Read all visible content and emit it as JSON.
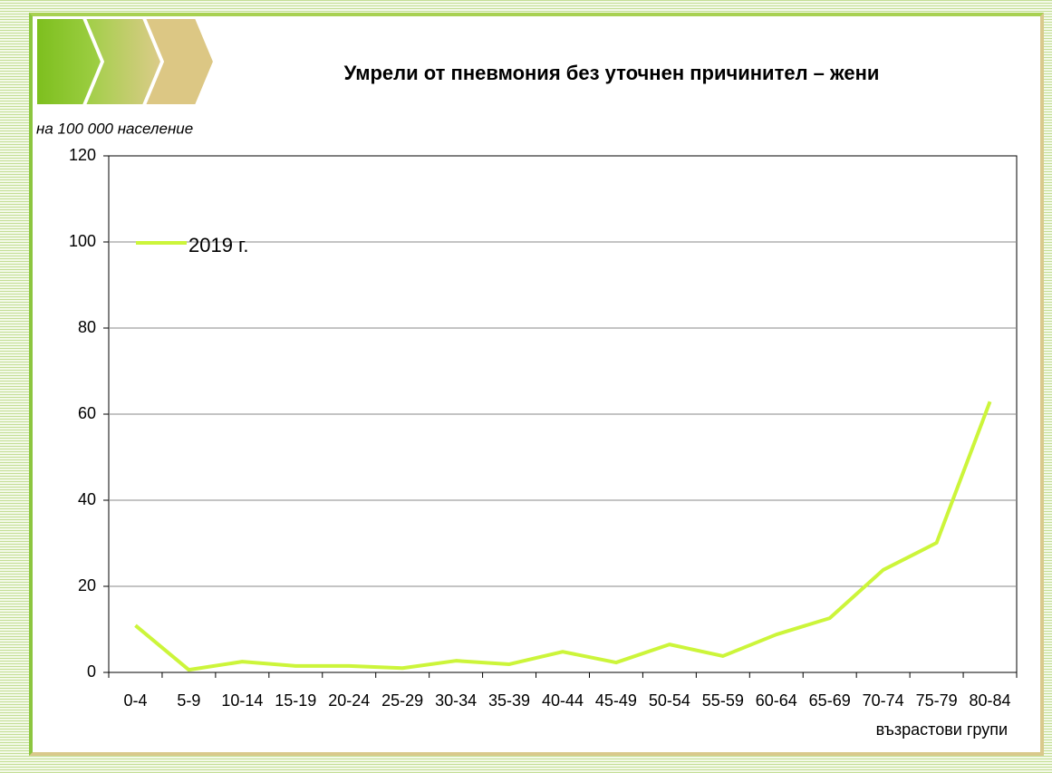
{
  "chart_data": {
    "type": "line",
    "title": "Умрели от пневмония без уточнен причинител – жени",
    "y_axis_label": "на 100 000 население",
    "x_axis_label": "възрастови групи",
    "categories": [
      "0-4",
      "5-9",
      "10-14",
      "15-19",
      "20-24",
      "25-29",
      "30-34",
      "35-39",
      "40-44",
      "45-49",
      "50-54",
      "55-59",
      "60-64",
      "65-69",
      "70-74",
      "75-79",
      "80-84"
    ],
    "series": [
      {
        "name": "2019 г.",
        "color": "#ccf53a",
        "values": [
          10.9,
          0.6,
          2.5,
          1.5,
          1.5,
          1.0,
          2.7,
          1.9,
          4.8,
          2.3,
          6.5,
          3.8,
          8.8,
          12.6,
          23.8,
          30.1,
          62.9
        ]
      }
    ],
    "ylim": [
      0,
      120
    ],
    "yticks": [
      0,
      20,
      40,
      60,
      80,
      100,
      120
    ],
    "grid": true,
    "legend": "upper left"
  }
}
